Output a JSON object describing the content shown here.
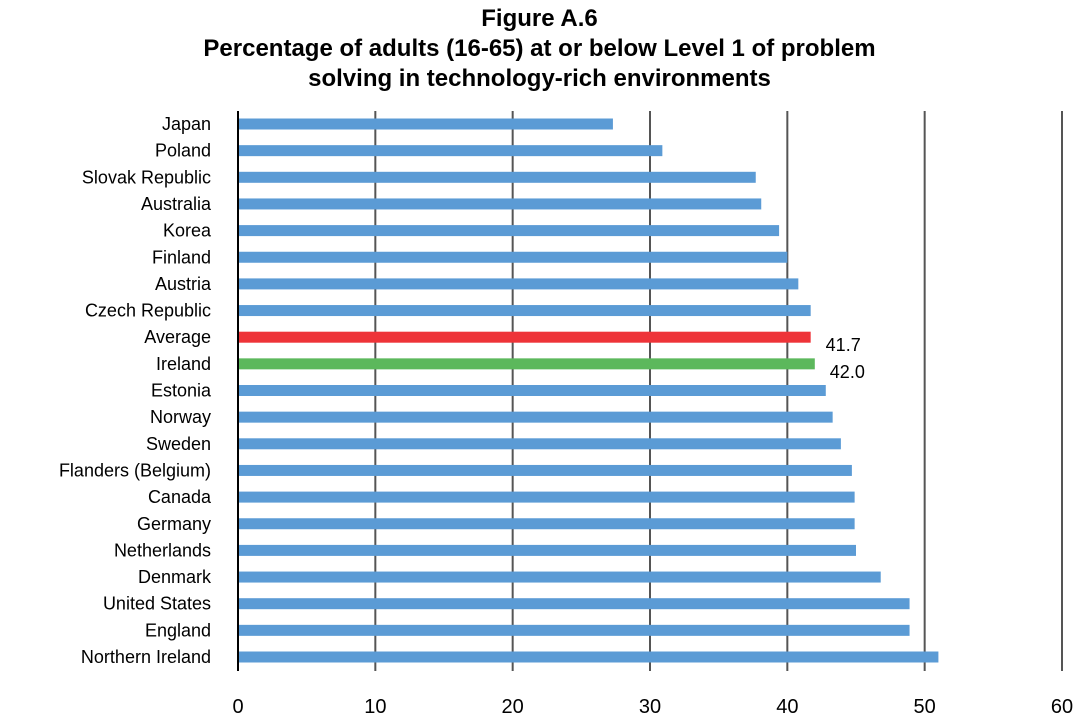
{
  "chart_data": {
    "type": "bar",
    "orientation": "horizontal",
    "title_lines": [
      "Figure A.6",
      "Percentage of adults (16-65) at or below Level 1 of problem",
      "solving in technology-rich environments"
    ],
    "categories": [
      "Japan",
      "Poland",
      "Slovak Republic",
      "Australia",
      "Korea",
      "Finland",
      "Austria",
      "Czech Republic",
      "Average",
      "Ireland",
      "Estonia",
      "Norway",
      "Sweden",
      "Flanders (Belgium)",
      "Canada",
      "Germany",
      "Netherlands",
      "Denmark",
      "United States",
      "England",
      "Northern Ireland"
    ],
    "values": [
      27.3,
      30.9,
      37.7,
      38.1,
      39.4,
      40.0,
      40.8,
      41.7,
      41.7,
      42.0,
      42.8,
      43.3,
      43.9,
      44.7,
      44.9,
      44.9,
      45.0,
      46.8,
      48.9,
      48.9,
      51.0
    ],
    "data_labels": [
      {
        "category": "Average",
        "text": "41.7"
      },
      {
        "category": "Ireland",
        "text": "42.0"
      }
    ],
    "xlim": [
      0,
      60
    ],
    "xticks": [
      "0",
      "10",
      "20",
      "30",
      "40",
      "50",
      "60"
    ],
    "grid": true,
    "colors": {
      "default": "#5b9bd5",
      "Average": "#ee3338",
      "Ireland": "#5cb85c",
      "grid": "#555555",
      "axis": "#000000"
    }
  }
}
